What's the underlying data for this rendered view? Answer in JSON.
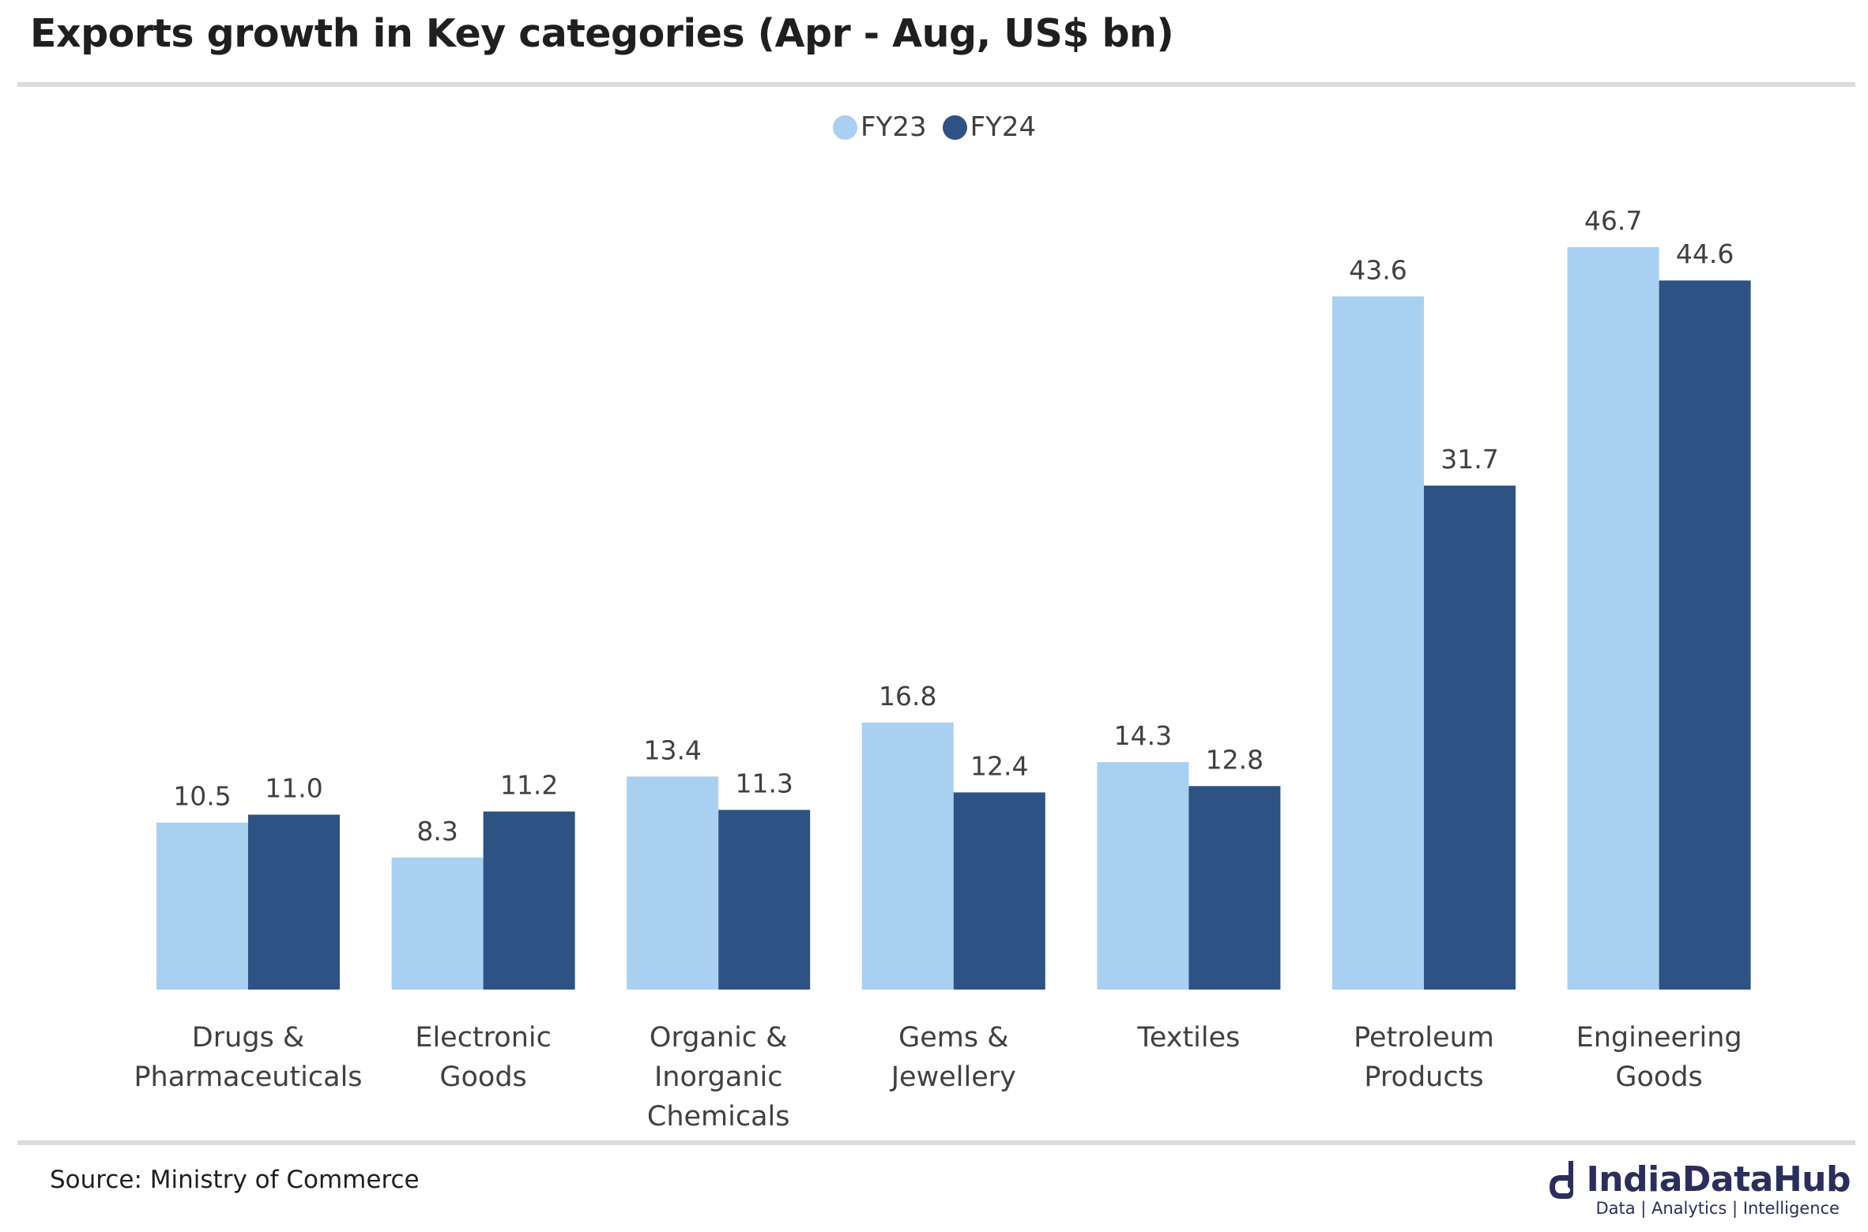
{
  "title": "Exports growth in Key categories (Apr - Aug, US$ bn)",
  "source": "Source: Ministry of Commerce",
  "brand": {
    "name": "IndiaDataHub",
    "tagline": "Data | Analytics | Intelligence",
    "logo_icon": "india-data-hub-logo-icon"
  },
  "colors": {
    "FY23": "#a9d0f0",
    "FY24": "#2d5283",
    "label_text": "#404040",
    "rule": "#dcdcdc"
  },
  "chart_data": {
    "type": "bar",
    "title": "Exports growth in Key categories (Apr - Aug, US$ bn)",
    "xlabel": "",
    "ylabel": "",
    "grid": false,
    "legend_position": "top-center",
    "categories": [
      [
        "Drugs &",
        "Pharmaceuticals"
      ],
      [
        "Electronic",
        "Goods"
      ],
      [
        "Organic &",
        "Inorganic",
        "Chemicals"
      ],
      [
        "Gems &",
        "Jewellery"
      ],
      [
        "Textiles"
      ],
      [
        "Petroleum",
        "Products"
      ],
      [
        "Engineering",
        "Goods"
      ]
    ],
    "series": [
      {
        "name": "FY23",
        "values": [
          10.5,
          8.3,
          13.4,
          16.8,
          14.3,
          43.6,
          46.7
        ],
        "labels": [
          "10.5",
          "8.3",
          "13.4",
          "16.8",
          "14.3",
          "43.6",
          "46.7"
        ]
      },
      {
        "name": "FY24",
        "values": [
          11.0,
          11.2,
          11.3,
          12.4,
          12.8,
          31.7,
          44.6
        ],
        "labels": [
          "11.0",
          "11.2",
          "11.3",
          "12.4",
          "12.8",
          "31.7",
          "44.6"
        ]
      }
    ],
    "ylim": [
      0,
      46.7
    ]
  }
}
